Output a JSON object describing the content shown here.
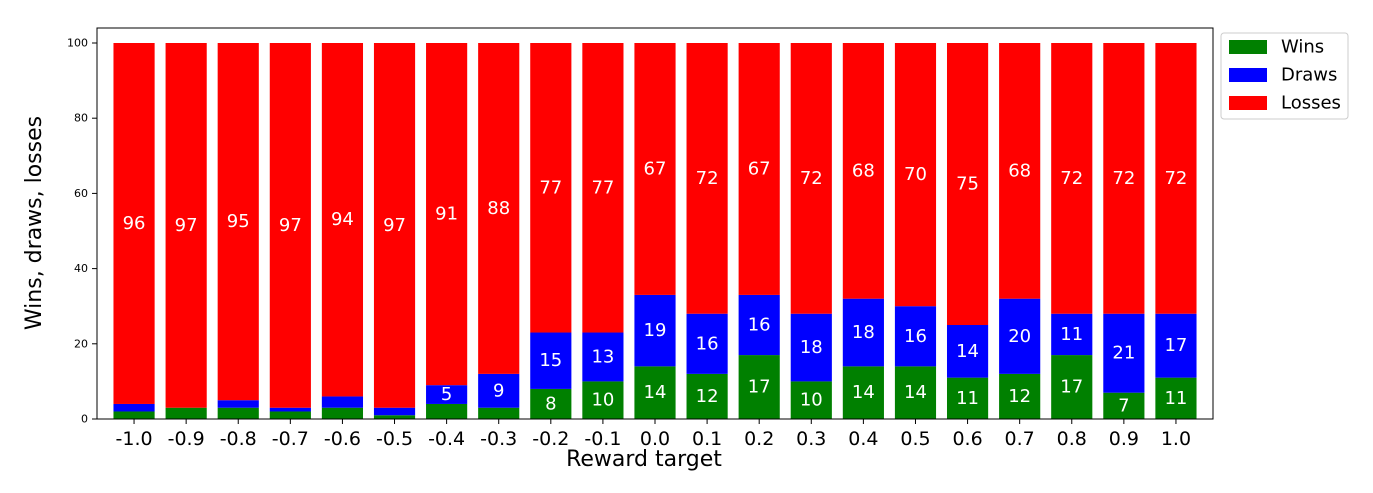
{
  "chart_data": {
    "type": "bar",
    "stacked": true,
    "title": "",
    "xlabel": "Reward target",
    "ylabel": "Wins, draws, losses",
    "ylim": [
      0,
      100
    ],
    "yticks": [
      "0",
      "20",
      "40",
      "60",
      "80",
      "100"
    ],
    "grid": false,
    "legend_position": "outside-top-right",
    "categories": [
      "-1.0",
      "-0.9",
      "-0.8",
      "-0.7",
      "-0.6",
      "-0.5",
      "-0.4",
      "-0.3",
      "-0.2",
      "-0.1",
      "0.0",
      "0.1",
      "0.2",
      "0.3",
      "0.4",
      "0.5",
      "0.6",
      "0.7",
      "0.8",
      "0.9",
      "1.0"
    ],
    "series": [
      {
        "name": "Wins",
        "color": "#008000",
        "values": [
          2,
          3,
          3,
          2,
          3,
          1,
          4,
          3,
          8,
          10,
          14,
          12,
          17,
          10,
          14,
          14,
          11,
          12,
          17,
          7,
          11
        ],
        "labels": [
          "",
          "",
          "",
          "",
          "",
          "",
          "",
          "",
          "8",
          "10",
          "14",
          "12",
          "17",
          "10",
          "14",
          "14",
          "11",
          "12",
          "17",
          "7",
          "11"
        ]
      },
      {
        "name": "Draws",
        "color": "#0000ff",
        "values": [
          2,
          0,
          2,
          1,
          3,
          2,
          5,
          9,
          15,
          13,
          19,
          16,
          16,
          18,
          18,
          16,
          14,
          20,
          11,
          21,
          17
        ],
        "labels": [
          "",
          "",
          "",
          "",
          "",
          "",
          "5",
          "9",
          "15",
          "13",
          "19",
          "16",
          "16",
          "18",
          "18",
          "16",
          "14",
          "20",
          "11",
          "21",
          "17"
        ]
      },
      {
        "name": "Losses",
        "color": "#ff0000",
        "values": [
          96,
          97,
          95,
          97,
          94,
          97,
          91,
          88,
          77,
          77,
          67,
          72,
          67,
          72,
          68,
          70,
          75,
          68,
          72,
          72,
          72
        ],
        "labels": [
          "96",
          "97",
          "95",
          "97",
          "94",
          "97",
          "91",
          "88",
          "77",
          "77",
          "67",
          "72",
          "67",
          "72",
          "68",
          "70",
          "75",
          "68",
          "72",
          "72",
          "72"
        ]
      }
    ]
  }
}
